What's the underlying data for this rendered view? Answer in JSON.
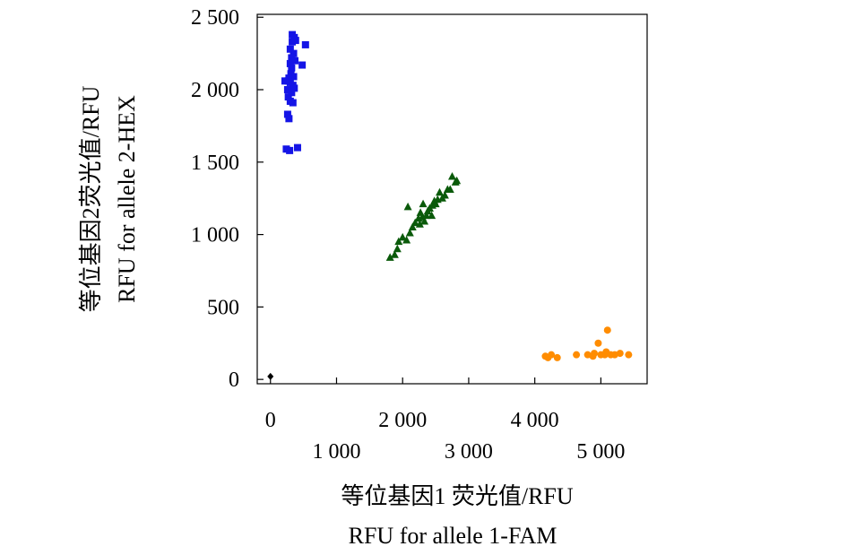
{
  "chart_data": {
    "type": "scatter",
    "title": "",
    "xlabel": [
      "等位基因1 荧光值/RFU",
      "RFU for allele 1-FAM"
    ],
    "ylabel": [
      "等位基因2荧光值/RFU",
      "RFU for allele 2-HEX"
    ],
    "xlim": [
      -200,
      5700
    ],
    "ylim": [
      -30,
      2520
    ],
    "x_ticks": [
      0,
      1000,
      2000,
      3000,
      4000,
      5000
    ],
    "x_tick_labels": [
      "0",
      "1 000",
      "2 000",
      "3 000",
      "4 000",
      "5 000"
    ],
    "y_ticks": [
      0,
      500,
      1000,
      1500,
      2000,
      2500
    ],
    "y_tick_labels": [
      "0",
      "500",
      "1 000",
      "1 500",
      "2 000",
      "2 500"
    ],
    "grid": false,
    "series": [
      {
        "marker": "square",
        "color": "#1414e6",
        "points": [
          [
            330,
            2380
          ],
          [
            360,
            2360
          ],
          [
            330,
            2330
          ],
          [
            530,
            2310
          ],
          [
            380,
            2340
          ],
          [
            300,
            2280
          ],
          [
            350,
            2250
          ],
          [
            320,
            2220
          ],
          [
            370,
            2200
          ],
          [
            480,
            2170
          ],
          [
            300,
            2180
          ],
          [
            320,
            2150
          ],
          [
            310,
            2110
          ],
          [
            280,
            2080
          ],
          [
            350,
            2090
          ],
          [
            220,
            2060
          ],
          [
            270,
            2060
          ],
          [
            300,
            2050
          ],
          [
            340,
            2030
          ],
          [
            360,
            2010
          ],
          [
            260,
            2000
          ],
          [
            320,
            1980
          ],
          [
            270,
            1950
          ],
          [
            300,
            1920
          ],
          [
            340,
            1910
          ],
          [
            260,
            1830
          ],
          [
            280,
            1800
          ],
          [
            240,
            1590
          ],
          [
            290,
            1580
          ],
          [
            410,
            1600
          ]
        ]
      },
      {
        "marker": "triangle",
        "color": "#0a5a0a",
        "points": [
          [
            1810,
            840
          ],
          [
            1880,
            860
          ],
          [
            1920,
            900
          ],
          [
            1940,
            950
          ],
          [
            2000,
            980
          ],
          [
            2060,
            960
          ],
          [
            2080,
            1190
          ],
          [
            2110,
            1010
          ],
          [
            2150,
            1050
          ],
          [
            2190,
            1080
          ],
          [
            2240,
            1110
          ],
          [
            2260,
            1070
          ],
          [
            2270,
            1150
          ],
          [
            2300,
            1120
          ],
          [
            2310,
            1210
          ],
          [
            2330,
            1090
          ],
          [
            2360,
            1130
          ],
          [
            2380,
            1160
          ],
          [
            2410,
            1180
          ],
          [
            2440,
            1130
          ],
          [
            2450,
            1200
          ],
          [
            2480,
            1230
          ],
          [
            2500,
            1210
          ],
          [
            2530,
            1240
          ],
          [
            2560,
            1290
          ],
          [
            2600,
            1250
          ],
          [
            2640,
            1270
          ],
          [
            2680,
            1310
          ],
          [
            2720,
            1310
          ],
          [
            2750,
            1400
          ],
          [
            2800,
            1360
          ],
          [
            2820,
            1370
          ]
        ]
      },
      {
        "marker": "circle",
        "color": "#ff8c00",
        "points": [
          [
            4160,
            160
          ],
          [
            4200,
            150
          ],
          [
            4250,
            170
          ],
          [
            4340,
            150
          ],
          [
            4630,
            170
          ],
          [
            4800,
            170
          ],
          [
            4880,
            160
          ],
          [
            4900,
            180
          ],
          [
            4960,
            250
          ],
          [
            5000,
            170
          ],
          [
            5060,
            170
          ],
          [
            5080,
            190
          ],
          [
            5100,
            340
          ],
          [
            5150,
            170
          ],
          [
            5210,
            170
          ],
          [
            5290,
            180
          ],
          [
            5420,
            170
          ]
        ]
      },
      {
        "marker": "diamond",
        "color": "#000000",
        "points": [
          [
            0,
            20
          ]
        ]
      }
    ]
  }
}
